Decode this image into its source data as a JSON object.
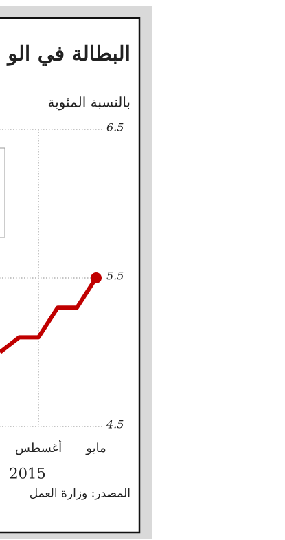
{
  "chart_data": {
    "type": "line",
    "title": "البطالة في الو",
    "subtitle": "بالنسبة المئوية",
    "categories": [
      "مايو",
      null,
      null,
      "أغسطس",
      null,
      null
    ],
    "series": [
      {
        "name": null,
        "color": "#c00000",
        "values": [
          5.5,
          5.3,
          5.3,
          5.1,
          5.1,
          5.0
        ]
      }
    ],
    "ylim": [
      4.5,
      6.5
    ],
    "yticks": [
      4.5,
      5.5,
      6.5
    ],
    "grid": true,
    "annotations": [
      "2015"
    ],
    "source": "المصدر: وزارة العمل"
  }
}
